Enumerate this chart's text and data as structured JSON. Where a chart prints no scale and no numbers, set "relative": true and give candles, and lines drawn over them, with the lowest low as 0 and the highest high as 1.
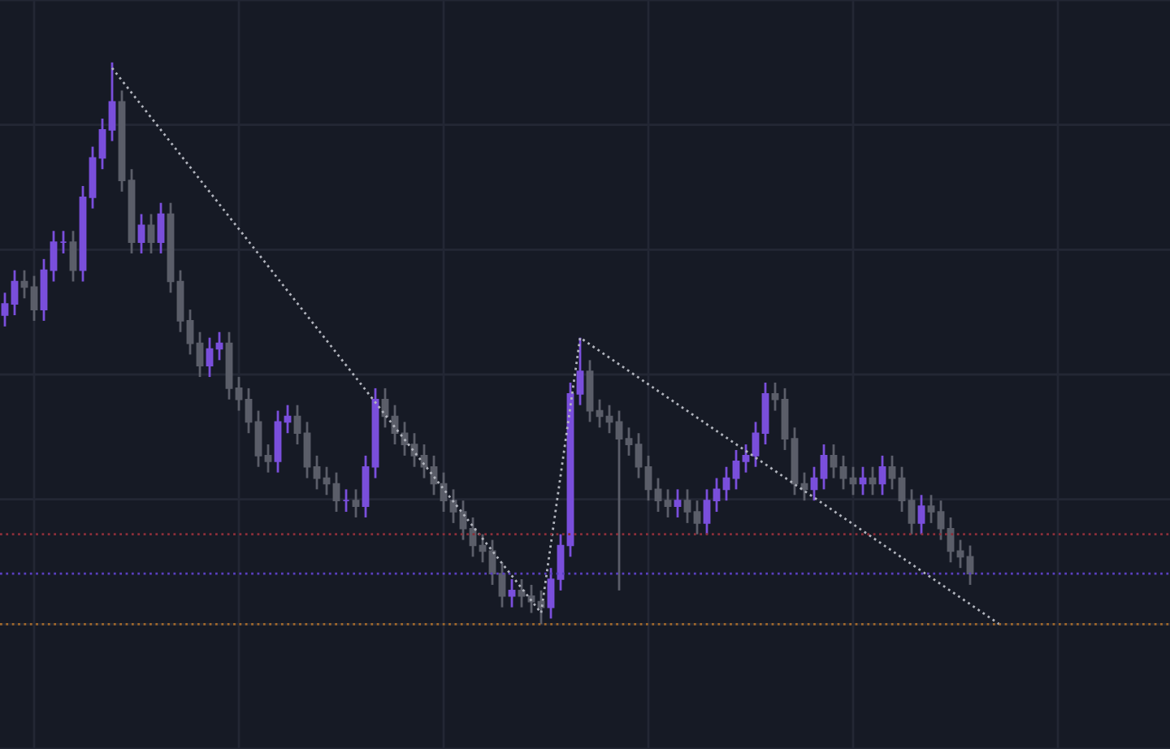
{
  "chart_data": {
    "type": "candlestick",
    "relative": true,
    "grid": true,
    "legend": false,
    "categories": [
      null,
      null,
      null,
      null,
      null,
      null,
      null,
      null,
      null,
      null,
      null,
      null,
      null,
      null,
      null,
      null,
      null,
      null,
      null,
      null,
      null,
      null,
      null,
      null,
      null,
      null,
      null,
      null,
      null,
      null,
      null,
      null,
      null,
      null,
      null,
      null,
      null,
      null,
      null,
      null,
      null,
      null,
      null,
      null,
      null,
      null,
      null,
      null,
      null,
      null,
      null,
      null,
      null,
      null,
      null,
      null,
      null,
      null,
      null,
      null,
      null,
      null,
      null,
      null,
      null,
      null,
      null,
      null,
      null,
      null,
      null,
      null,
      null,
      null,
      null,
      null,
      null,
      null,
      null,
      null,
      null,
      null,
      null,
      null,
      null,
      null,
      null,
      null,
      null,
      null,
      null,
      null,
      null,
      null,
      null,
      null,
      null,
      null,
      null,
      null,
      null,
      null,
      null,
      null,
      null,
      null,
      null,
      null,
      null,
      null,
      null,
      null,
      null,
      null,
      null,
      null,
      null,
      null,
      null,
      null
    ],
    "colors": [
      "#7a4fdc",
      "#7a4fdc",
      "#5b5e69",
      "#5b5e69",
      "#7a4fdc",
      "#7a4fdc",
      "#7a4fdc",
      "#5b5e69",
      "#7a4fdc",
      "#7a4fdc",
      "#7a4fdc",
      "#7a4fdc",
      "#5b5e69",
      "#5b5e69",
      "#7a4fdc",
      "#5b5e69",
      "#7a4fdc",
      "#5b5e69",
      "#5b5e69",
      "#5b5e69",
      "#5b5e69",
      "#7a4fdc",
      "#7a4fdc",
      "#5b5e69",
      "#5b5e69",
      "#5b5e69",
      "#5b5e69",
      "#5b5e69",
      "#7a4fdc",
      "#7a4fdc",
      "#5b5e69",
      "#5b5e69",
      "#5b5e69",
      "#5b5e69",
      "#5b5e69",
      "#7a4fdc",
      "#5b5e69",
      "#7a4fdc",
      "#7a4fdc",
      "#5b5e69",
      "#5b5e69",
      "#5b5e69",
      "#5b5e69",
      "#5b5e69",
      "#5b5e69",
      "#5b5e69",
      "#5b5e69",
      "#5b5e69",
      "#5b5e69",
      "#5b5e69",
      "#5b5e69",
      "#5b5e69",
      "#7a4fdc",
      "#5b5e69",
      "#5b5e69",
      "#5b5e69",
      "#7a4fdc",
      "#7a4fdc",
      "#7a4fdc",
      "#7a4fdc",
      "#5b5e69",
      "#5b5e69",
      "#5b5e69",
      "#5b5e69",
      "#5b5e69",
      "#5b5e69",
      "#5b5e69",
      "#5b5e69",
      "#5b5e69",
      "#7a4fdc",
      "#5b5e69",
      "#5b5e69",
      "#7a4fdc",
      "#7a4fdc",
      "#7a4fdc",
      "#7a4fdc",
      "#7a4fdc",
      "#7a4fdc",
      "#7a4fdc",
      "#5b5e69",
      "#5b5e69",
      "#5b5e69",
      "#5b5e69",
      "#7a4fdc",
      "#7a4fdc",
      "#5b5e69",
      "#5b5e69",
      "#5b5e69",
      "#7a4fdc",
      "#5b5e69",
      "#7a4fdc",
      "#5b5e69",
      "#5b5e69",
      "#5b5e69",
      "#7a4fdc",
      "#5b5e69",
      "#5b5e69",
      "#5b5e69",
      "#5b5e69",
      "#5b5e69",
      null,
      null,
      null,
      null,
      null,
      null,
      null,
      null,
      null,
      null,
      null,
      null,
      null,
      null,
      null,
      null,
      null,
      null,
      null,
      null
    ],
    "ohlc": [
      [
        0.55,
        0.59,
        0.53,
        0.57
      ],
      [
        0.57,
        0.63,
        0.55,
        0.61
      ],
      [
        0.61,
        0.63,
        0.58,
        0.6
      ],
      [
        0.6,
        0.62,
        0.54,
        0.56
      ],
      [
        0.56,
        0.65,
        0.54,
        0.63
      ],
      [
        0.63,
        0.7,
        0.61,
        0.68
      ],
      [
        0.68,
        0.7,
        0.66,
        0.68
      ],
      [
        0.68,
        0.7,
        0.61,
        0.63
      ],
      [
        0.63,
        0.78,
        0.61,
        0.76
      ],
      [
        0.76,
        0.85,
        0.74,
        0.83
      ],
      [
        0.83,
        0.9,
        0.81,
        0.88
      ],
      [
        0.88,
        1.0,
        0.86,
        0.93
      ],
      [
        0.93,
        0.95,
        0.77,
        0.79
      ],
      [
        0.79,
        0.81,
        0.66,
        0.68
      ],
      [
        0.68,
        0.73,
        0.66,
        0.71
      ],
      [
        0.71,
        0.73,
        0.66,
        0.68
      ],
      [
        0.68,
        0.75,
        0.66,
        0.73
      ],
      [
        0.73,
        0.75,
        0.59,
        0.61
      ],
      [
        0.61,
        0.63,
        0.52,
        0.54
      ],
      [
        0.54,
        0.56,
        0.48,
        0.5
      ],
      [
        0.5,
        0.52,
        0.44,
        0.46
      ],
      [
        0.46,
        0.51,
        0.44,
        0.49
      ],
      [
        0.49,
        0.52,
        0.47,
        0.5
      ],
      [
        0.5,
        0.52,
        0.4,
        0.42
      ],
      [
        0.42,
        0.44,
        0.38,
        0.4
      ],
      [
        0.4,
        0.42,
        0.34,
        0.36
      ],
      [
        0.36,
        0.38,
        0.28,
        0.3
      ],
      [
        0.3,
        0.32,
        0.27,
        0.29
      ],
      [
        0.29,
        0.38,
        0.27,
        0.36
      ],
      [
        0.36,
        0.39,
        0.34,
        0.37
      ],
      [
        0.37,
        0.39,
        0.32,
        0.34
      ],
      [
        0.34,
        0.36,
        0.26,
        0.28
      ],
      [
        0.28,
        0.3,
        0.24,
        0.26
      ],
      [
        0.26,
        0.28,
        0.23,
        0.25
      ],
      [
        0.25,
        0.27,
        0.2,
        0.22
      ],
      [
        0.22,
        0.24,
        0.2,
        0.22
      ],
      [
        0.22,
        0.24,
        0.19,
        0.21
      ],
      [
        0.21,
        0.3,
        0.19,
        0.28
      ],
      [
        0.28,
        0.42,
        0.26,
        0.4
      ],
      [
        0.4,
        0.42,
        0.35,
        0.37
      ],
      [
        0.37,
        0.39,
        0.32,
        0.34
      ],
      [
        0.34,
        0.36,
        0.3,
        0.32
      ],
      [
        0.32,
        0.34,
        0.28,
        0.3
      ],
      [
        0.3,
        0.32,
        0.26,
        0.28
      ],
      [
        0.28,
        0.3,
        0.23,
        0.25
      ],
      [
        0.25,
        0.27,
        0.2,
        0.22
      ],
      [
        0.22,
        0.24,
        0.18,
        0.2
      ],
      [
        0.2,
        0.22,
        0.15,
        0.17
      ],
      [
        0.17,
        0.19,
        0.12,
        0.14
      ],
      [
        0.14,
        0.16,
        0.11,
        0.13
      ],
      [
        0.13,
        0.15,
        0.07,
        0.09
      ],
      [
        0.09,
        0.11,
        0.03,
        0.05
      ],
      [
        0.05,
        0.08,
        0.03,
        0.06
      ],
      [
        0.06,
        0.08,
        0.03,
        0.05
      ],
      [
        0.05,
        0.07,
        0.02,
        0.04
      ],
      [
        0.04,
        0.06,
        0.0,
        0.03
      ],
      [
        0.03,
        0.1,
        0.01,
        0.08
      ],
      [
        0.08,
        0.16,
        0.06,
        0.14
      ],
      [
        0.14,
        0.43,
        0.12,
        0.41
      ],
      [
        0.41,
        0.51,
        0.39,
        0.45
      ],
      [
        0.45,
        0.47,
        0.36,
        0.38
      ],
      [
        0.38,
        0.4,
        0.35,
        0.37
      ],
      [
        0.37,
        0.39,
        0.34,
        0.36
      ],
      [
        0.36,
        0.38,
        0.06,
        0.33
      ],
      [
        0.33,
        0.35,
        0.3,
        0.32
      ],
      [
        0.32,
        0.34,
        0.26,
        0.28
      ],
      [
        0.28,
        0.3,
        0.22,
        0.24
      ],
      [
        0.24,
        0.26,
        0.2,
        0.22
      ],
      [
        0.22,
        0.24,
        0.19,
        0.21
      ],
      [
        0.21,
        0.24,
        0.19,
        0.22
      ],
      [
        0.22,
        0.24,
        0.18,
        0.2
      ],
      [
        0.2,
        0.22,
        0.16,
        0.18
      ],
      [
        0.18,
        0.24,
        0.16,
        0.22
      ],
      [
        0.22,
        0.26,
        0.2,
        0.24
      ],
      [
        0.24,
        0.28,
        0.22,
        0.26
      ],
      [
        0.26,
        0.31,
        0.24,
        0.29
      ],
      [
        0.29,
        0.32,
        0.27,
        0.3
      ],
      [
        0.3,
        0.36,
        0.28,
        0.34
      ],
      [
        0.34,
        0.43,
        0.32,
        0.41
      ],
      [
        0.41,
        0.43,
        0.38,
        0.4
      ],
      [
        0.4,
        0.42,
        0.31,
        0.33
      ],
      [
        0.33,
        0.35,
        0.23,
        0.25
      ],
      [
        0.25,
        0.27,
        0.22,
        0.24
      ],
      [
        0.24,
        0.28,
        0.22,
        0.26
      ],
      [
        0.26,
        0.32,
        0.24,
        0.3
      ],
      [
        0.3,
        0.32,
        0.26,
        0.28
      ],
      [
        0.28,
        0.3,
        0.24,
        0.26
      ],
      [
        0.26,
        0.28,
        0.23,
        0.25
      ],
      [
        0.25,
        0.28,
        0.23,
        0.26
      ],
      [
        0.26,
        0.28,
        0.23,
        0.25
      ],
      [
        0.25,
        0.3,
        0.23,
        0.28
      ],
      [
        0.28,
        0.3,
        0.24,
        0.26
      ],
      [
        0.26,
        0.28,
        0.2,
        0.22
      ],
      [
        0.22,
        0.24,
        0.16,
        0.18
      ],
      [
        0.18,
        0.23,
        0.16,
        0.21
      ],
      [
        0.21,
        0.23,
        0.18,
        0.2
      ],
      [
        0.2,
        0.22,
        0.15,
        0.17
      ],
      [
        0.17,
        0.19,
        0.11,
        0.13
      ],
      [
        0.13,
        0.15,
        0.1,
        0.12
      ],
      [
        0.12,
        0.14,
        0.07,
        0.09
      ],
      null,
      null,
      null,
      null,
      null,
      null,
      null,
      null,
      null,
      null,
      null,
      null,
      null,
      null,
      null,
      null,
      null,
      null,
      null,
      null
    ],
    "series": [
      {
        "type": "line",
        "color": "#b2b5be",
        "line_style": "dotted",
        "values": [
          null,
          null,
          null,
          null,
          null,
          null,
          null,
          null,
          null,
          null,
          null,
          0.99,
          null,
          null,
          null,
          null,
          null,
          null,
          null,
          null,
          null,
          null,
          null,
          null,
          null,
          null,
          null,
          null,
          null,
          null,
          null,
          null,
          null,
          null,
          null,
          null,
          null,
          null,
          null,
          null,
          null,
          null,
          null,
          null,
          null,
          null,
          null,
          null,
          null,
          null,
          null,
          null,
          null,
          null,
          null,
          0.02,
          null,
          null,
          null,
          0.51,
          null,
          null,
          null,
          null,
          null,
          null,
          null,
          null,
          null,
          null,
          null,
          null,
          null,
          null,
          null,
          null,
          null,
          null,
          null,
          null,
          null,
          null,
          null,
          null,
          null,
          null,
          null,
          null,
          null,
          null,
          null,
          null,
          null,
          null,
          null,
          null,
          null,
          null,
          null,
          null,
          null,
          null,
          0.0,
          null,
          null,
          null,
          null,
          null,
          null,
          null,
          null,
          null,
          null,
          null,
          null,
          null,
          null,
          null,
          null,
          null
        ]
      }
    ],
    "ref_lines": [
      {
        "axis": "y",
        "value": 0.09,
        "color": "#5a3fc0",
        "line_style": "dotted"
      },
      {
        "axis": "y",
        "value": 0.16,
        "color": "#8c2f3a",
        "line_style": "dotted"
      },
      {
        "axis": "y",
        "value": 0.0,
        "color": "#a0682a",
        "line_style": "dotted"
      }
    ]
  }
}
